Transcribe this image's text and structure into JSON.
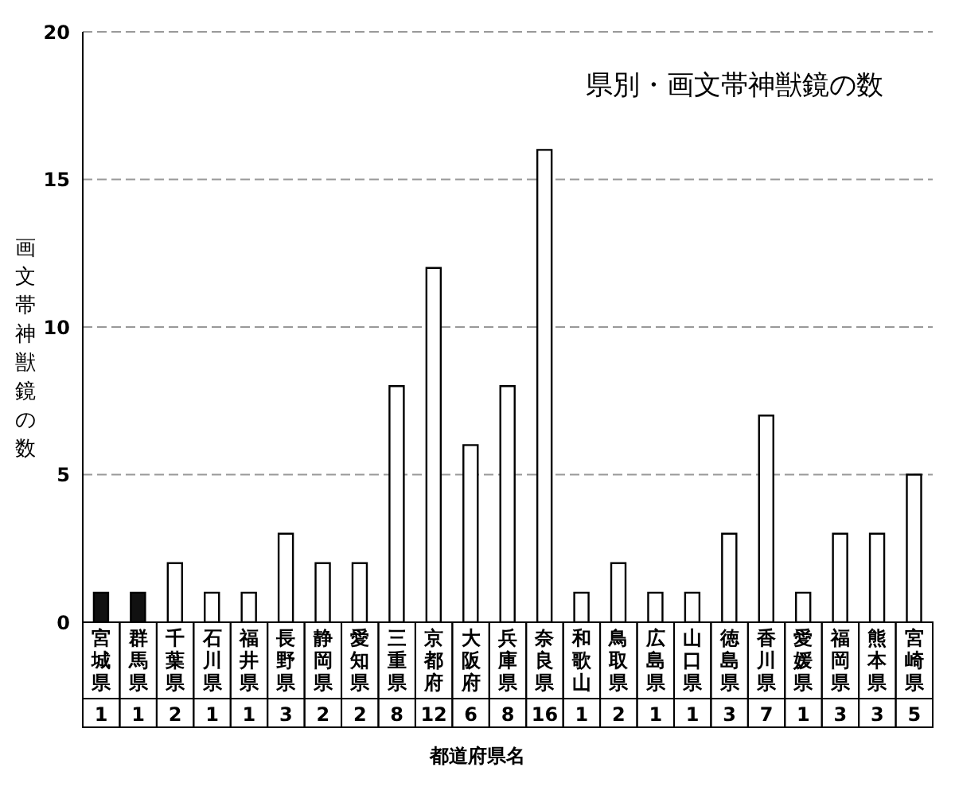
{
  "chart_data": {
    "type": "bar",
    "title": "県別・画文帯神獣鏡の数",
    "ylabel": "画文帯神獣鏡の数",
    "xlabel": "都道府県名",
    "categories": [
      "宮城県",
      "群馬県",
      "千葉県",
      "石川県",
      "福井県",
      "長野県",
      "静岡県",
      "愛知県",
      "三重県",
      "京都府",
      "大阪府",
      "兵庫県",
      "奈良県",
      "和歌山",
      "鳥取県",
      "広島県",
      "山口県",
      "徳島県",
      "香川県",
      "愛媛県",
      "福岡県",
      "熊本県",
      "宮崎県"
    ],
    "values": [
      1,
      1,
      2,
      1,
      1,
      3,
      2,
      2,
      8,
      12,
      6,
      8,
      16,
      1,
      2,
      1,
      1,
      3,
      7,
      1,
      3,
      3,
      5
    ],
    "colors": [
      "#111111",
      "#111111",
      "#ffffff",
      "#ffffff",
      "#ffffff",
      "#ffffff",
      "#ffffff",
      "#ffffff",
      "#ffffff",
      "#ffffff",
      "#ffffff",
      "#ffffff",
      "#ffffff",
      "#ffffff",
      "#ffffff",
      "#ffffff",
      "#ffffff",
      "#ffffff",
      "#ffffff",
      "#ffffff",
      "#ffffff",
      "#ffffff",
      "#ffffff"
    ],
    "ylim": [
      0,
      20
    ],
    "yticks": [
      0,
      5,
      10,
      15,
      20
    ],
    "grid": "y",
    "data_labels": true
  }
}
